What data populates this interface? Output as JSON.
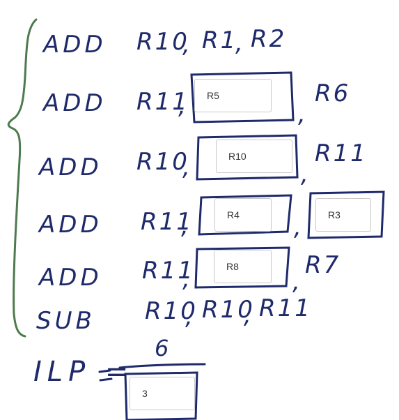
{
  "colors": {
    "ink": "#1f2a6b",
    "brace": "#4e7a4e",
    "field_border": "#c9c9c9"
  },
  "instructions": [
    {
      "op": "ADD",
      "operands": [
        "R10",
        "R1",
        "R2"
      ]
    },
    {
      "op": "ADD",
      "dest": "R11",
      "blank1": "R5",
      "src2": "R6"
    },
    {
      "op": "ADD",
      "dest": "R10",
      "blank1": "R10",
      "src2": "R11"
    },
    {
      "op": "ADD",
      "dest": "R11",
      "blank1": "R4",
      "blank2": "R3"
    },
    {
      "op": "ADD",
      "dest": "R11",
      "blank1": "R8",
      "src2": "R7"
    },
    {
      "op": "SUB",
      "operands": [
        "R10",
        "R10",
        "R11"
      ]
    }
  ],
  "ilp": {
    "label": "ILP =",
    "numerator": "6",
    "denominator_answer": "3"
  }
}
